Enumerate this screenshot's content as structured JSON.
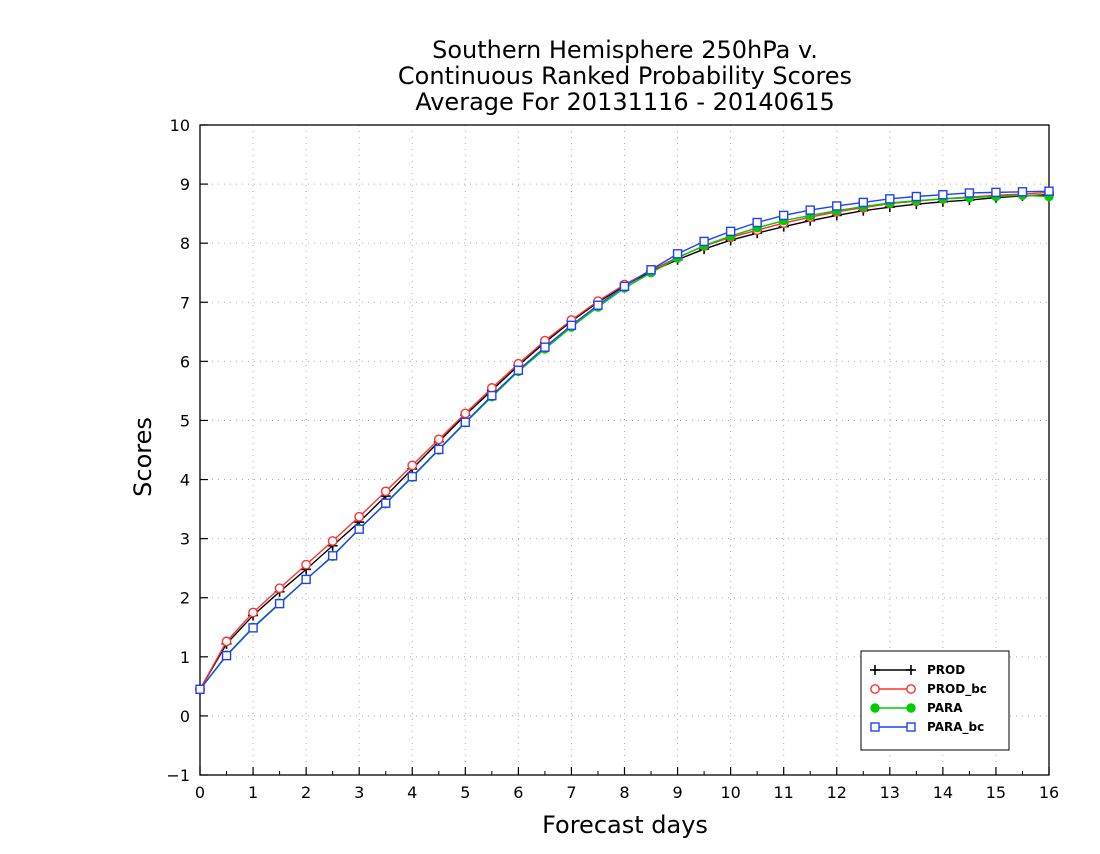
{
  "chart_data": {
    "type": "line",
    "title": [
      "Southern Hemisphere 250hPa v.",
      "Continuous Ranked Probability Scores",
      "Average For 20131116 - 20140615"
    ],
    "xlabel": "Forecast days",
    "ylabel": "Scores",
    "xlim": [
      0,
      16
    ],
    "ylim": [
      -1,
      10
    ],
    "x_ticks": [
      0,
      1,
      2,
      3,
      4,
      5,
      6,
      7,
      8,
      9,
      10,
      11,
      12,
      13,
      14,
      15,
      16
    ],
    "y_ticks": [
      -1,
      0,
      1,
      2,
      3,
      4,
      5,
      6,
      7,
      8,
      9,
      10
    ],
    "grid": true,
    "legend_position": "bottom-right",
    "x": [
      0,
      0.5,
      1,
      1.5,
      2,
      2.5,
      3,
      3.5,
      4,
      4.5,
      5,
      5.5,
      6,
      6.5,
      7,
      7.5,
      8,
      8.5,
      9,
      9.5,
      10,
      10.5,
      11,
      11.5,
      12,
      12.5,
      13,
      13.5,
      14,
      14.5,
      15,
      15.5,
      16
    ],
    "series": [
      {
        "name": "PROD",
        "color": "#000000",
        "marker": "plus",
        "values": [
          0.45,
          1.22,
          1.7,
          2.1,
          2.48,
          2.88,
          3.28,
          3.72,
          4.18,
          4.64,
          5.09,
          5.51,
          5.93,
          6.32,
          6.68,
          7.0,
          7.28,
          7.52,
          7.72,
          7.9,
          8.05,
          8.17,
          8.28,
          8.38,
          8.47,
          8.55,
          8.61,
          8.66,
          8.7,
          8.73,
          8.77,
          8.8,
          8.82
        ]
      },
      {
        "name": "PROD_bc",
        "color": "#ff3030",
        "marker": "open-circle",
        "values": [
          0.45,
          1.26,
          1.75,
          2.16,
          2.56,
          2.96,
          3.37,
          3.8,
          4.24,
          4.68,
          5.12,
          5.55,
          5.96,
          6.35,
          6.7,
          7.02,
          7.3,
          7.54,
          7.76,
          7.95,
          8.1,
          8.22,
          8.34,
          8.44,
          8.53,
          8.6,
          8.67,
          8.71,
          8.75,
          8.78,
          8.81,
          8.83,
          8.86
        ]
      },
      {
        "name": "PARA",
        "color": "#00cc00",
        "marker": "filled-circle",
        "values": [
          0.45,
          1.03,
          1.5,
          1.91,
          2.31,
          2.7,
          3.17,
          3.59,
          4.04,
          4.5,
          4.96,
          5.4,
          5.83,
          6.21,
          6.58,
          6.92,
          7.24,
          7.5,
          7.75,
          7.96,
          8.12,
          8.26,
          8.38,
          8.47,
          8.55,
          8.62,
          8.68,
          8.72,
          8.75,
          8.77,
          8.79,
          8.81,
          8.79
        ]
      },
      {
        "name": "PARA_bc",
        "color": "#1f3fff",
        "marker": "open-square",
        "values": [
          0.45,
          1.02,
          1.49,
          1.9,
          2.31,
          2.71,
          3.16,
          3.6,
          4.05,
          4.51,
          4.97,
          5.42,
          5.85,
          6.24,
          6.61,
          6.95,
          7.27,
          7.55,
          7.82,
          8.03,
          8.2,
          8.35,
          8.47,
          8.56,
          8.63,
          8.69,
          8.75,
          8.79,
          8.82,
          8.85,
          8.86,
          8.87,
          8.88
        ]
      }
    ]
  }
}
